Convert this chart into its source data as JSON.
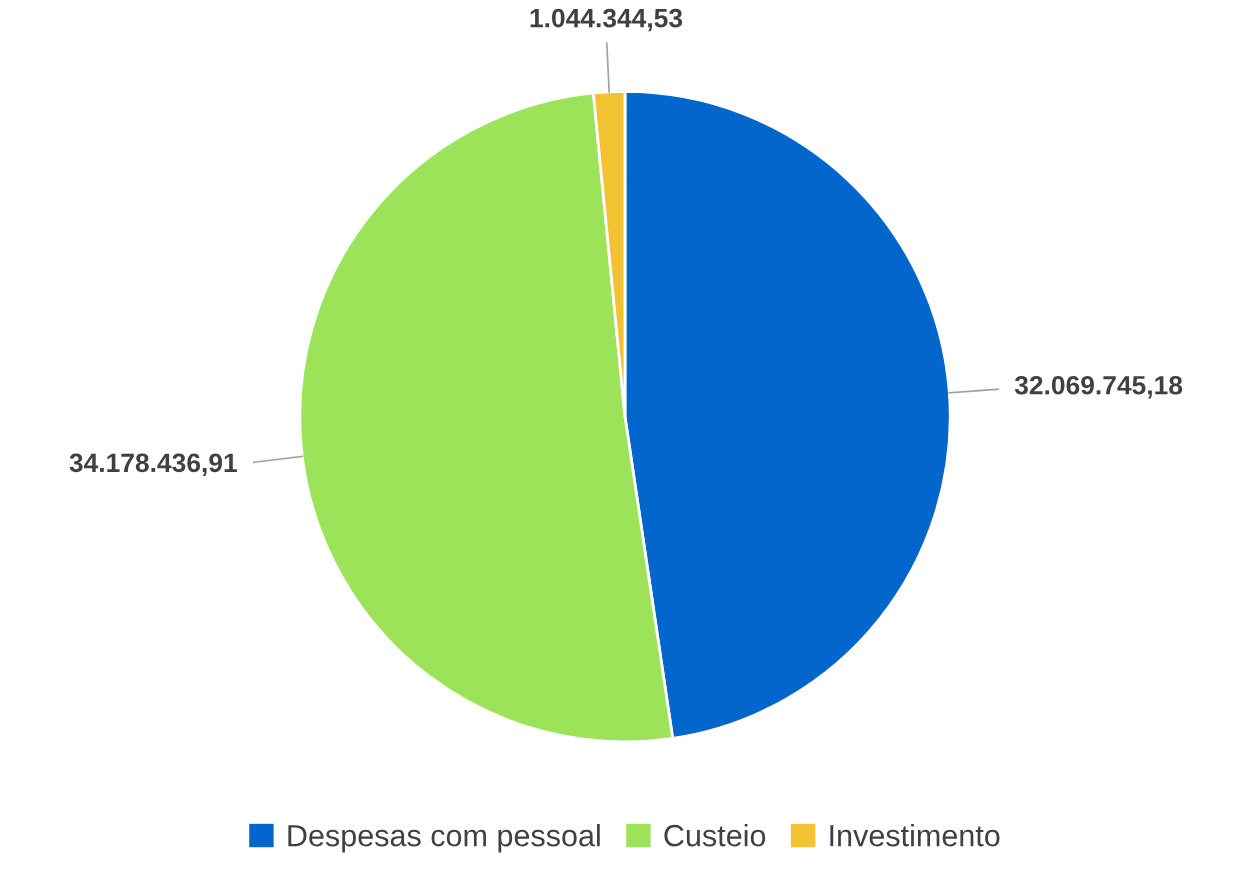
{
  "chart_data": {
    "type": "pie",
    "categories": [
      "Despesas com pessoal",
      "Custeio",
      "Investimento"
    ],
    "values": [
      32069745.18,
      34178436.91,
      1044344.53
    ],
    "colors": [
      "#0366cc",
      "#9de35a",
      "#f2c232"
    ],
    "value_labels": [
      "32.069.745,18",
      "34.178.436,91",
      "1.044.344,53"
    ],
    "legend": "bottom"
  }
}
